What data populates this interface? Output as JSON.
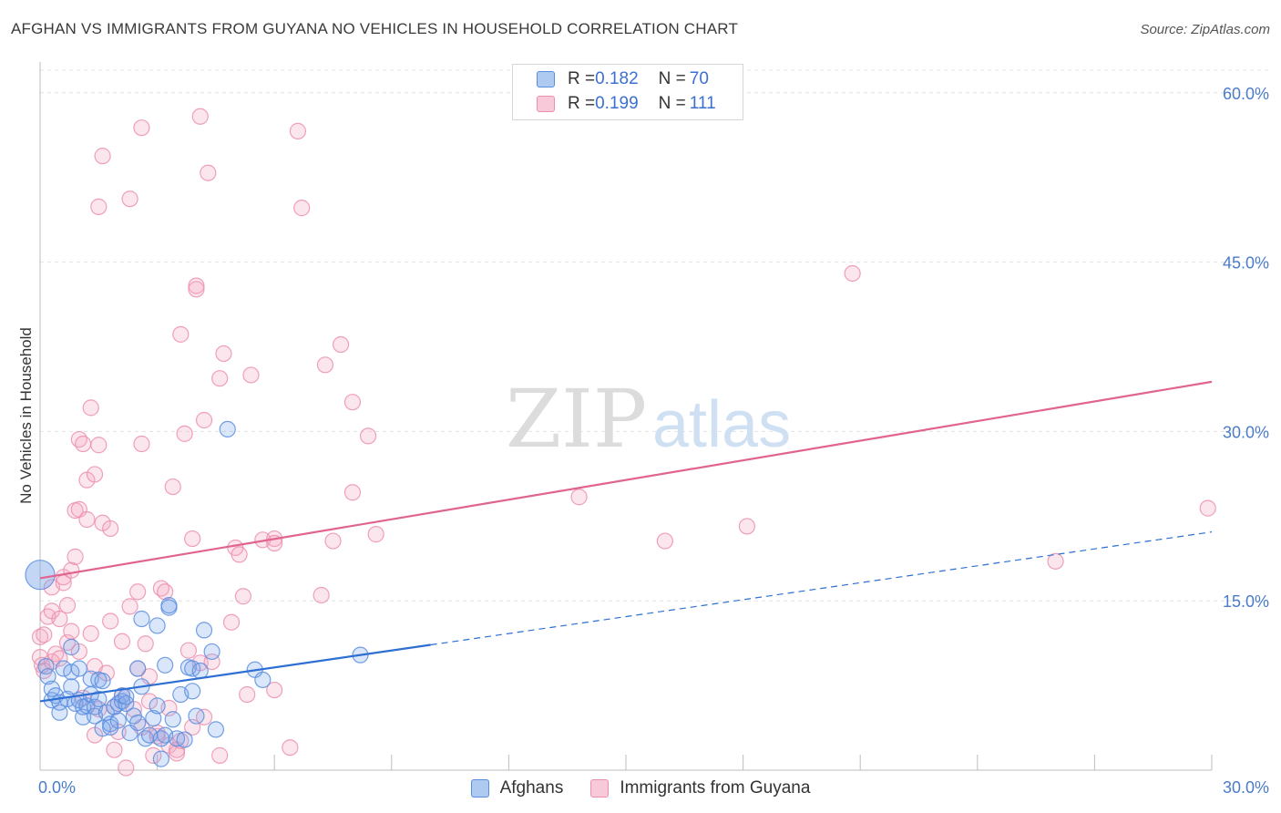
{
  "header": {
    "title": "AFGHAN VS IMMIGRANTS FROM GUYANA NO VEHICLES IN HOUSEHOLD CORRELATION CHART",
    "source": "Source: ZipAtlas.com"
  },
  "watermark": {
    "zip": "ZIP",
    "atlas": "atlas"
  },
  "legend": {
    "rows": [
      {
        "r_label": "R = ",
        "r_value": "0.182",
        "n_label": "N = ",
        "n_value": "70",
        "color": "#7aa6e8"
      },
      {
        "r_label": "R = ",
        "r_value": "0.199",
        "n_label": "N = ",
        "n_value": "111",
        "color": "#f4a6bf"
      }
    ]
  },
  "bottom_legend": {
    "items": [
      {
        "label": "Afghans",
        "color": "#7aa6e8"
      },
      {
        "label": "Immigrants from Guyana",
        "color": "#f4a6bf"
      }
    ]
  },
  "chart_data": {
    "type": "scatter",
    "title": "AFGHAN VS IMMIGRANTS FROM GUYANA NO VEHICLES IN HOUSEHOLD CORRELATION CHART",
    "xlabel": "",
    "ylabel": "No Vehicles in Household",
    "xlim": [
      0,
      30
    ],
    "ylim": [
      0,
      62
    ],
    "x_tick_labels": [
      "0.0%",
      "30.0%"
    ],
    "y_ticks": [
      15,
      30,
      45,
      60
    ],
    "y_tick_labels": [
      "15.0%",
      "30.0%",
      "45.0%",
      "60.0%"
    ],
    "grid": true,
    "series": [
      {
        "name": "Afghans",
        "color": "#7aa6e8",
        "line_color": "#2d6fd2",
        "trend": {
          "x0": 0,
          "y0": 6.1,
          "x1": 30,
          "y1": 21.1,
          "solid_until": 10
        },
        "points": [
          [
            0.0,
            17.3
          ],
          [
            0.15,
            9.2
          ],
          [
            0.2,
            8.3
          ],
          [
            0.3,
            6.2
          ],
          [
            0.3,
            7.2
          ],
          [
            0.4,
            6.6
          ],
          [
            0.5,
            5.1
          ],
          [
            0.5,
            6.0
          ],
          [
            0.6,
            9.0
          ],
          [
            0.7,
            6.3
          ],
          [
            0.8,
            7.4
          ],
          [
            0.8,
            8.7
          ],
          [
            0.8,
            10.9
          ],
          [
            0.9,
            5.9
          ],
          [
            1.0,
            9.0
          ],
          [
            1.0,
            6.2
          ],
          [
            1.1,
            4.7
          ],
          [
            1.1,
            5.6
          ],
          [
            1.2,
            5.7
          ],
          [
            1.3,
            8.1
          ],
          [
            1.3,
            6.7
          ],
          [
            1.4,
            5.6
          ],
          [
            1.4,
            4.8
          ],
          [
            1.5,
            8.0
          ],
          [
            1.5,
            6.3
          ],
          [
            1.6,
            7.9
          ],
          [
            1.6,
            3.7
          ],
          [
            1.7,
            5.1
          ],
          [
            1.8,
            4.1
          ],
          [
            1.8,
            3.8
          ],
          [
            1.9,
            5.6
          ],
          [
            2.0,
            5.9
          ],
          [
            2.0,
            4.4
          ],
          [
            2.1,
            6.6
          ],
          [
            2.1,
            6.1
          ],
          [
            2.2,
            5.9
          ],
          [
            2.2,
            6.5
          ],
          [
            2.3,
            3.3
          ],
          [
            2.4,
            4.8
          ],
          [
            2.5,
            4.2
          ],
          [
            2.5,
            9.0
          ],
          [
            2.6,
            7.4
          ],
          [
            2.6,
            13.4
          ],
          [
            2.7,
            2.8
          ],
          [
            2.8,
            3.1
          ],
          [
            2.9,
            4.6
          ],
          [
            3.0,
            12.8
          ],
          [
            3.0,
            5.7
          ],
          [
            3.1,
            2.8
          ],
          [
            3.1,
            1.0
          ],
          [
            3.2,
            3.1
          ],
          [
            3.2,
            9.3
          ],
          [
            3.3,
            14.4
          ],
          [
            3.3,
            14.6
          ],
          [
            3.4,
            4.5
          ],
          [
            3.5,
            2.8
          ],
          [
            3.6,
            6.7
          ],
          [
            3.7,
            2.7
          ],
          [
            3.8,
            9.1
          ],
          [
            3.9,
            9.0
          ],
          [
            4.0,
            4.8
          ],
          [
            4.1,
            8.8
          ],
          [
            4.2,
            12.4
          ],
          [
            4.4,
            10.5
          ],
          [
            4.5,
            3.6
          ],
          [
            4.8,
            30.2
          ],
          [
            5.5,
            8.9
          ],
          [
            5.7,
            8.0
          ],
          [
            8.2,
            10.2
          ],
          [
            3.9,
            7.0
          ]
        ]
      },
      {
        "name": "Immigrants from Guyana",
        "color": "#f4a6bf",
        "line_color": "#e0648f",
        "trend": {
          "x0": 0,
          "y0": 17.0,
          "x1": 30,
          "y1": 34.4
        },
        "points": [
          [
            0.0,
            10.0
          ],
          [
            0.0,
            11.8
          ],
          [
            0.05,
            9.3
          ],
          [
            0.1,
            12.0
          ],
          [
            0.1,
            8.8
          ],
          [
            0.2,
            13.6
          ],
          [
            0.3,
            14.1
          ],
          [
            0.3,
            16.2
          ],
          [
            0.3,
            9.6
          ],
          [
            0.4,
            10.3
          ],
          [
            0.5,
            13.4
          ],
          [
            0.5,
            9.9
          ],
          [
            0.6,
            17.1
          ],
          [
            0.6,
            16.6
          ],
          [
            0.7,
            14.6
          ],
          [
            0.7,
            11.3
          ],
          [
            0.8,
            17.7
          ],
          [
            0.8,
            12.3
          ],
          [
            0.9,
            18.9
          ],
          [
            0.9,
            23.0
          ],
          [
            1.0,
            10.5
          ],
          [
            1.0,
            29.3
          ],
          [
            1.0,
            23.1
          ],
          [
            1.1,
            6.4
          ],
          [
            1.1,
            28.9
          ],
          [
            1.2,
            25.7
          ],
          [
            1.2,
            22.2
          ],
          [
            1.3,
            32.1
          ],
          [
            1.3,
            12.1
          ],
          [
            1.4,
            3.1
          ],
          [
            1.4,
            9.2
          ],
          [
            1.4,
            26.2
          ],
          [
            1.5,
            28.8
          ],
          [
            1.5,
            5.4
          ],
          [
            1.6,
            21.9
          ],
          [
            1.7,
            8.6
          ],
          [
            1.8,
            13.2
          ],
          [
            1.8,
            21.4
          ],
          [
            1.9,
            5.6
          ],
          [
            1.9,
            1.8
          ],
          [
            2.0,
            3.4
          ],
          [
            2.1,
            11.4
          ],
          [
            2.1,
            6.6
          ],
          [
            2.2,
            0.2
          ],
          [
            2.3,
            14.5
          ],
          [
            2.4,
            5.4
          ],
          [
            2.5,
            15.8
          ],
          [
            2.5,
            9.0
          ],
          [
            2.6,
            28.9
          ],
          [
            2.6,
            3.8
          ],
          [
            2.7,
            11.2
          ],
          [
            2.8,
            8.3
          ],
          [
            2.8,
            6.1
          ],
          [
            2.9,
            1.3
          ],
          [
            3.0,
            3.0
          ],
          [
            3.0,
            3.3
          ],
          [
            3.1,
            16.1
          ],
          [
            3.2,
            15.8
          ],
          [
            3.3,
            5.5
          ],
          [
            3.3,
            2.2
          ],
          [
            3.4,
            25.1
          ],
          [
            3.5,
            1.8
          ],
          [
            3.5,
            1.5
          ],
          [
            3.6,
            2.6
          ],
          [
            3.7,
            29.8
          ],
          [
            3.8,
            10.6
          ],
          [
            3.9,
            3.8
          ],
          [
            3.9,
            20.5
          ],
          [
            4.0,
            42.9
          ],
          [
            4.1,
            9.5
          ],
          [
            4.2,
            4.7
          ],
          [
            4.2,
            31.0
          ],
          [
            4.4,
            9.6
          ],
          [
            4.6,
            1.3
          ],
          [
            4.6,
            34.7
          ],
          [
            4.7,
            36.9
          ],
          [
            4.9,
            13.1
          ],
          [
            5.0,
            19.7
          ],
          [
            5.1,
            19.1
          ],
          [
            5.2,
            15.4
          ],
          [
            5.3,
            6.7
          ],
          [
            5.4,
            35.0
          ],
          [
            5.7,
            20.4
          ],
          [
            6.0,
            20.5
          ],
          [
            6.0,
            20.1
          ],
          [
            6.0,
            7.1
          ],
          [
            6.4,
            2.0
          ],
          [
            6.6,
            56.6
          ],
          [
            6.7,
            49.8
          ],
          [
            7.2,
            15.5
          ],
          [
            7.3,
            35.9
          ],
          [
            7.5,
            20.3
          ],
          [
            7.7,
            37.7
          ],
          [
            8.0,
            32.6
          ],
          [
            8.0,
            24.6
          ],
          [
            8.4,
            29.6
          ],
          [
            8.6,
            20.9
          ],
          [
            1.6,
            54.4
          ],
          [
            1.5,
            49.9
          ],
          [
            2.3,
            50.6
          ],
          [
            2.6,
            56.9
          ],
          [
            3.6,
            38.6
          ],
          [
            4.0,
            42.6
          ],
          [
            4.1,
            57.9
          ],
          [
            4.3,
            52.9
          ],
          [
            13.8,
            24.2
          ],
          [
            16.0,
            20.3
          ],
          [
            18.1,
            21.6
          ],
          [
            20.8,
            44.0
          ],
          [
            26.0,
            18.5
          ],
          [
            29.9,
            23.2
          ]
        ]
      }
    ]
  }
}
